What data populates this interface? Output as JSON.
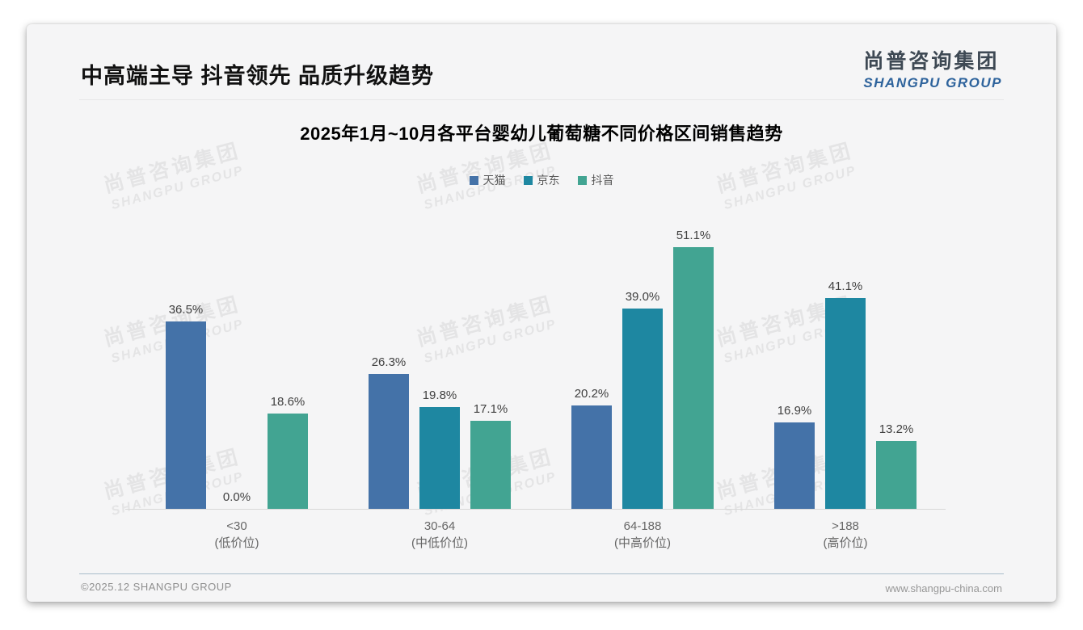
{
  "page": {
    "slide_title": "中高端主导 抖音领先 品质升级趋势",
    "logo": {
      "cn": "尚普咨询集团",
      "en": "SHANGPU GROUP"
    },
    "watermark": {
      "cn": "尚普咨询集团",
      "en": "SHANGPU GROUP"
    },
    "footer": {
      "left": "©2025.12 SHANGPU GROUP",
      "right": "www.shangpu-china.com"
    },
    "colors": {
      "logo_blue": "#2e639c",
      "axis_line": "#d8d8d8",
      "card_bg": "#f5f5f6"
    }
  },
  "chart_data": {
    "type": "bar",
    "title": "2025年1月~10月各平台婴幼儿葡萄糖不同价格区间销售趋势",
    "unit": "%",
    "ylim": [
      0,
      52
    ],
    "grid": false,
    "legend_position": "top",
    "value_labels": true,
    "categories": [
      {
        "range": "<30",
        "tier": "(低价位)"
      },
      {
        "range": "30-64",
        "tier": "(中低价位)"
      },
      {
        "range": "64-188",
        "tier": "(中高价位)"
      },
      {
        "range": ">188",
        "tier": "(高价位)"
      }
    ],
    "series": [
      {
        "name": "天猫",
        "color": "#4472a8",
        "values": [
          36.5,
          26.3,
          20.2,
          16.9
        ]
      },
      {
        "name": "京东",
        "color": "#1e87a1",
        "values": [
          0.0,
          19.8,
          39.0,
          41.1
        ]
      },
      {
        "name": "抖音",
        "color": "#42a492",
        "values": [
          18.6,
          17.1,
          51.1,
          13.2
        ]
      }
    ]
  }
}
